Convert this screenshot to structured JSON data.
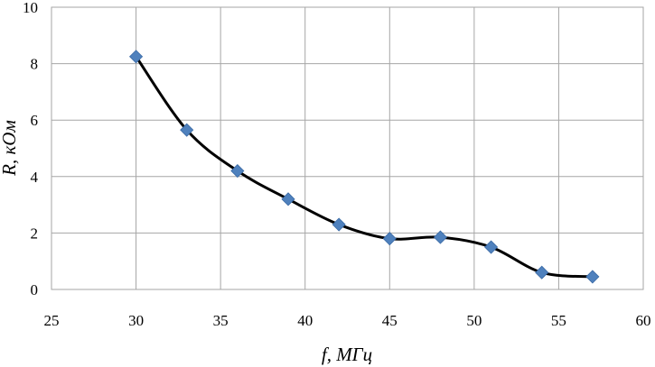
{
  "chart_data": {
    "type": "scatter",
    "title": "",
    "xlabel": "f, МГц",
    "ylabel": "R, кОм",
    "xlim": [
      25,
      60
    ],
    "ylim": [
      0,
      10
    ],
    "x_ticks": [
      25,
      30,
      35,
      40,
      45,
      50,
      55,
      60
    ],
    "y_ticks": [
      0,
      2,
      4,
      6,
      8,
      10
    ],
    "grid": true,
    "smooth_line": true,
    "colors": {
      "marker": "#4F81BD",
      "line": "#000000",
      "grid": "#A6A6A6"
    },
    "series": [
      {
        "x": [
          30,
          33,
          36,
          39,
          42,
          45,
          48,
          51,
          54,
          57
        ],
        "y": [
          8.25,
          5.65,
          4.2,
          3.2,
          2.3,
          1.8,
          1.85,
          1.5,
          0.6,
          0.45
        ]
      }
    ]
  }
}
